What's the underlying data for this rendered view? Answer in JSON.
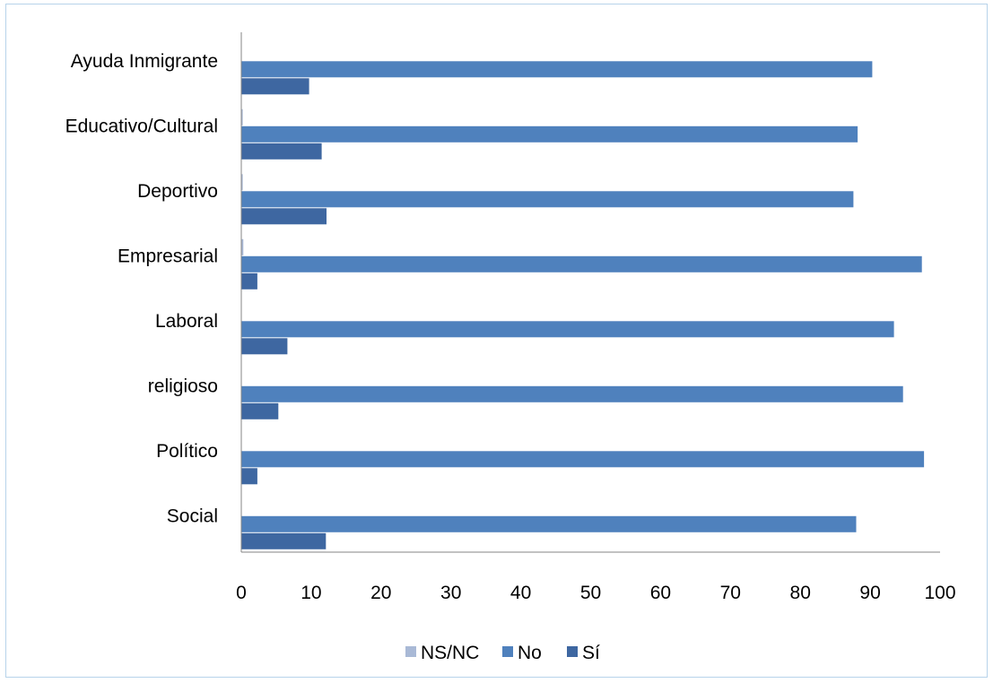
{
  "chart_data": {
    "type": "bar",
    "orientation": "horizontal",
    "categories": [
      "Ayuda Inmigrante",
      "Educativo/Cultural",
      "Deportivo",
      "Empresarial",
      "Laboral",
      "religioso",
      "Político",
      "Social"
    ],
    "series": [
      {
        "name": "NS/NC",
        "color": "#a9b9d6",
        "values": [
          0,
          0.2,
          0.2,
          0.3,
          0,
          0,
          0,
          0
        ]
      },
      {
        "name": "No",
        "color": "#4f81bd",
        "values": [
          90.3,
          88.2,
          87.6,
          97.4,
          93.4,
          94.7,
          97.7,
          88.0
        ]
      },
      {
        "name": "Sí",
        "color": "#3e67a1",
        "values": [
          9.7,
          11.5,
          12.2,
          2.3,
          6.6,
          5.3,
          2.3,
          12.1
        ]
      }
    ],
    "x_ticks": [
      "0",
      "10",
      "20",
      "30",
      "40",
      "50",
      "60",
      "70",
      "80",
      "90",
      "100"
    ],
    "xlim": [
      0,
      100
    ],
    "grid": false,
    "legend_position": "bottom",
    "title": "",
    "xlabel": "",
    "ylabel": ""
  }
}
